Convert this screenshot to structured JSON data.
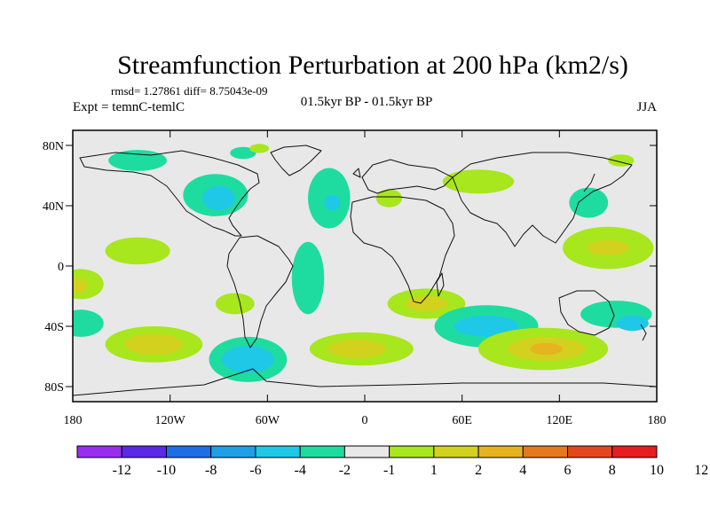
{
  "chart_data": {
    "type": "heatmap",
    "title": "Streamfunction Perturbation at 200 hPa (km2/s)",
    "stats": "rmsd= 1.27861 diff= 8.75043e-09",
    "left_label": "Expt = temnC-temlC",
    "center_label": "01.5kyr BP - 01.5kyr BP",
    "season": "JJA",
    "xlim": [
      -180,
      180
    ],
    "ylim": [
      -90,
      90
    ],
    "x_ticks": [
      {
        "value": -180,
        "label": "180"
      },
      {
        "value": -120,
        "label": "120W"
      },
      {
        "value": -60,
        "label": "60W"
      },
      {
        "value": 0,
        "label": "0"
      },
      {
        "value": 60,
        "label": "60E"
      },
      {
        "value": 120,
        "label": "120E"
      },
      {
        "value": 180,
        "label": "180"
      }
    ],
    "y_ticks": [
      {
        "value": 80,
        "label": "80N"
      },
      {
        "value": 40,
        "label": "40N"
      },
      {
        "value": 0,
        "label": "0"
      },
      {
        "value": -40,
        "label": "40S"
      },
      {
        "value": -80,
        "label": "80S"
      }
    ],
    "colorbar": {
      "colors": [
        "#9a2df0",
        "#5a28e6",
        "#1e6ee6",
        "#1ea0e6",
        "#1ec8e6",
        "#1edca0",
        "#e8e8e8",
        "#a8e61e",
        "#d2d21e",
        "#e6b41e",
        "#e6781e",
        "#e6461e",
        "#e61e1e"
      ],
      "labels": [
        "-12",
        "-10",
        "-8",
        "-6",
        "-4",
        "-2",
        "-1",
        "1",
        "2",
        "4",
        "6",
        "8",
        "10",
        "12"
      ]
    },
    "anomalies": [
      {
        "name": "north-pacific-low",
        "lon": -140,
        "lat": 70,
        "rx": 18,
        "ry": 7,
        "level": -2
      },
      {
        "name": "north-america-low",
        "lon": -92,
        "lat": 47,
        "rx": 20,
        "ry": 14,
        "level": -2
      },
      {
        "name": "north-america-core",
        "lon": -90,
        "lat": 45,
        "rx": 10,
        "ry": 8,
        "level": -4
      },
      {
        "name": "arctic-low",
        "lon": -75,
        "lat": 75,
        "rx": 8,
        "ry": 4,
        "level": -2
      },
      {
        "name": "greenland-high",
        "lon": -65,
        "lat": 78,
        "rx": 6,
        "ry": 3,
        "level": 1
      },
      {
        "name": "atlantic-low",
        "lon": -22,
        "lat": 45,
        "rx": 13,
        "ry": 20,
        "level": -2
      },
      {
        "name": "atlantic-core",
        "lon": -20,
        "lat": 42,
        "rx": 5,
        "ry": 5,
        "level": -4
      },
      {
        "name": "europe-high",
        "lon": 15,
        "lat": 45,
        "rx": 8,
        "ry": 6,
        "level": 1
      },
      {
        "name": "siberia-high",
        "lon": 70,
        "lat": 56,
        "rx": 22,
        "ry": 8,
        "level": 1
      },
      {
        "name": "east-asia-low",
        "lon": 138,
        "lat": 42,
        "rx": 12,
        "ry": 10,
        "level": -2
      },
      {
        "name": "bering-high",
        "lon": 158,
        "lat": 70,
        "rx": 8,
        "ry": 4,
        "level": 1
      },
      {
        "name": "pacific-high-band",
        "lon": 150,
        "lat": 12,
        "rx": 28,
        "ry": 14,
        "level": 1
      },
      {
        "name": "pacific-high-core",
        "lon": 150,
        "lat": 12,
        "rx": 13,
        "ry": 5,
        "level": 2
      },
      {
        "name": "caribbean-high",
        "lon": -140,
        "lat": 10,
        "rx": 20,
        "ry": 9,
        "level": 1
      },
      {
        "name": "south-america-low",
        "lon": -35,
        "lat": -8,
        "rx": 10,
        "ry": 24,
        "level": -2
      },
      {
        "name": "east-pacific-high",
        "lon": -175,
        "lat": -12,
        "rx": 14,
        "ry": 10,
        "level": 1
      },
      {
        "name": "east-pacific-core",
        "lon": -177,
        "lat": -13,
        "rx": 6,
        "ry": 5,
        "level": 2
      },
      {
        "name": "south-pacific-low",
        "lon": -175,
        "lat": -38,
        "rx": 14,
        "ry": 9,
        "level": -2
      },
      {
        "name": "south-pacific-high",
        "lon": -130,
        "lat": -52,
        "rx": 30,
        "ry": 12,
        "level": 1
      },
      {
        "name": "south-pacific-high-core",
        "lon": -130,
        "lat": -52,
        "rx": 18,
        "ry": 7,
        "level": 2
      },
      {
        "name": "chile-high",
        "lon": -80,
        "lat": -25,
        "rx": 12,
        "ry": 7,
        "level": 1
      },
      {
        "name": "patagonia-low",
        "lon": -72,
        "lat": -62,
        "rx": 24,
        "ry": 15,
        "level": -2
      },
      {
        "name": "patagonia-core",
        "lon": -72,
        "lat": -62,
        "rx": 16,
        "ry": 9,
        "level": -4
      },
      {
        "name": "south-atlantic-high",
        "lon": -2,
        "lat": -55,
        "rx": 32,
        "ry": 11,
        "level": 1
      },
      {
        "name": "south-atlantic-core",
        "lon": -5,
        "lat": -55,
        "rx": 18,
        "ry": 6,
        "level": 2
      },
      {
        "name": "madagascar-high",
        "lon": 38,
        "lat": -25,
        "rx": 24,
        "ry": 10,
        "level": 1
      },
      {
        "name": "madagascar-core",
        "lon": 38,
        "lat": -25,
        "rx": 13,
        "ry": 5,
        "level": 2
      },
      {
        "name": "indian-ocean-low",
        "lon": 75,
        "lat": -40,
        "rx": 32,
        "ry": 14,
        "level": -2
      },
      {
        "name": "indian-ocean-core",
        "lon": 75,
        "lat": -40,
        "rx": 20,
        "ry": 7,
        "level": -4
      },
      {
        "name": "southern-ocean-high",
        "lon": 110,
        "lat": -55,
        "rx": 40,
        "ry": 14,
        "level": 1
      },
      {
        "name": "southern-ocean-mid",
        "lon": 112,
        "lat": -55,
        "rx": 24,
        "ry": 8,
        "level": 2
      },
      {
        "name": "southern-ocean-core",
        "lon": 112,
        "lat": -55,
        "rx": 10,
        "ry": 4,
        "level": 4
      },
      {
        "name": "australia-low",
        "lon": 155,
        "lat": -32,
        "rx": 22,
        "ry": 9,
        "level": -2
      },
      {
        "name": "australia-core",
        "lon": 165,
        "lat": -38,
        "rx": 10,
        "ry": 5,
        "level": -4
      }
    ]
  }
}
